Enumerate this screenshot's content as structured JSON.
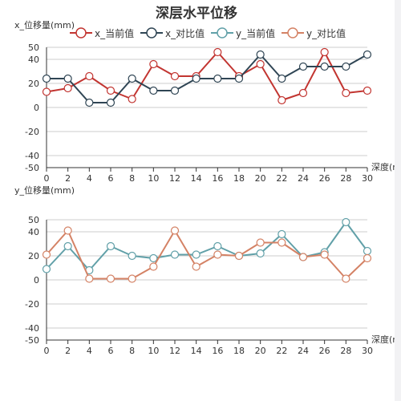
{
  "title": "深层水平位移",
  "legend": [
    {
      "name": "x_当前值",
      "color": "#c23531"
    },
    {
      "name": "x_对比值",
      "color": "#2f4554"
    },
    {
      "name": "y_当前值",
      "color": "#61a0a8"
    },
    {
      "name": "y_对比值",
      "color": "#d48265"
    }
  ],
  "chart_data": [
    {
      "type": "line",
      "ylabel": "x_位移量(mm)",
      "xlabel": "深度(m)",
      "x": [
        0,
        2,
        4,
        6,
        8,
        10,
        12,
        14,
        16,
        18,
        20,
        22,
        24,
        26,
        28,
        30
      ],
      "xlim": [
        0,
        30
      ],
      "ylim": [
        -50,
        50
      ],
      "yticks": [
        -50,
        -40,
        -20,
        0,
        20,
        40,
        50
      ],
      "grid": true,
      "series": [
        {
          "name": "x_当前值",
          "color": "#c23531",
          "values": [
            13,
            16,
            26,
            14,
            7,
            36,
            26,
            26,
            46,
            26,
            36,
            6,
            12,
            46,
            12,
            14
          ]
        },
        {
          "name": "x_对比值",
          "color": "#2f4554",
          "values": [
            24,
            24,
            4,
            4,
            24,
            14,
            14,
            24,
            24,
            24,
            44,
            24,
            34,
            34,
            34,
            44
          ]
        }
      ]
    },
    {
      "type": "line",
      "ylabel": "y_位移量(mm)",
      "xlabel": "深度(m)",
      "x": [
        0,
        2,
        4,
        6,
        8,
        10,
        12,
        14,
        16,
        18,
        20,
        22,
        24,
        26,
        28,
        30
      ],
      "xlim": [
        0,
        30
      ],
      "ylim": [
        -50,
        50
      ],
      "yticks": [
        -50,
        -40,
        -20,
        0,
        20,
        40,
        50
      ],
      "grid": true,
      "series": [
        {
          "name": "y_当前值",
          "color": "#61a0a8",
          "values": [
            9,
            28,
            8,
            28,
            20,
            18,
            21,
            21,
            28,
            20,
            22,
            38,
            19,
            23,
            48,
            24
          ]
        },
        {
          "name": "y_对比值",
          "color": "#d48265",
          "values": [
            21,
            41,
            1,
            1,
            1,
            11,
            41,
            11,
            21,
            20,
            31,
            31,
            19,
            21,
            1,
            18
          ]
        }
      ]
    }
  ]
}
